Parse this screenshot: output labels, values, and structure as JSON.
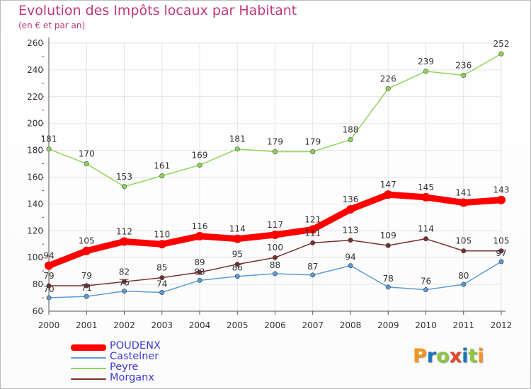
{
  "title": "Evolution des Impôts locaux par Habitant",
  "subtitle": "(en € et par an)",
  "logo": {
    "text": "Proxiti",
    "colors": [
      "#f7941d",
      "#1b75bc",
      "#8dc63f",
      "#e8462a",
      "#1b75bc",
      "#8dc63f",
      "#f7941d"
    ]
  },
  "chart_data": {
    "type": "line",
    "title": "Evolution des Impôts locaux par Habitant",
    "ylabel": "(en € et par an)",
    "x": [
      "2000",
      "2001",
      "2002",
      "2003",
      "2004",
      "2005",
      "2006",
      "2007",
      "2008",
      "2009",
      "2010",
      "2011",
      "2012"
    ],
    "ylim": [
      60,
      260
    ],
    "yticks": [
      "60",
      "80",
      "100",
      "120",
      "140",
      "160",
      "180",
      "200",
      "220",
      "240",
      "260"
    ],
    "grid": true,
    "legend_position": "bottom-left",
    "series": [
      {
        "name": "POUDENX",
        "color": "#ff0000",
        "values": [
          94,
          105,
          112,
          110,
          116,
          114,
          117,
          121,
          136,
          147,
          145,
          141,
          143
        ],
        "labels": [
          "94",
          "105",
          "112",
          "110",
          "116",
          "114",
          "117",
          "121",
          "136",
          "147",
          "145",
          "141",
          "143"
        ],
        "thick": true
      },
      {
        "name": "Castelner",
        "color": "#5b9bd5",
        "values": [
          70,
          71,
          75,
          74,
          83,
          86,
          88,
          87,
          94,
          78,
          76,
          80,
          97
        ],
        "labels": [
          "70",
          "71",
          "75",
          "74",
          "83",
          "86",
          "88",
          "87",
          "94",
          "78",
          "76",
          "80",
          "97"
        ],
        "thick": false
      },
      {
        "name": "Peyre",
        "color": "#8fd45a",
        "values": [
          181,
          170,
          153,
          161,
          169,
          181,
          179,
          179,
          188,
          226,
          239,
          236,
          252
        ],
        "labels": [
          "181",
          "170",
          "153",
          "161",
          "169",
          "181",
          "179",
          "179",
          "188",
          "226",
          "239",
          "236",
          "252"
        ],
        "thick": false
      },
      {
        "name": "Morganx",
        "color": "#7a2e2e",
        "values": [
          79,
          79,
          82,
          85,
          89,
          95,
          100,
          111,
          113,
          109,
          114,
          105,
          105
        ],
        "labels": [
          "79",
          "79",
          "82",
          "85",
          "89",
          "95",
          "100",
          "111",
          "113",
          "109",
          "114",
          "105",
          "105"
        ],
        "thick": false
      }
    ]
  }
}
